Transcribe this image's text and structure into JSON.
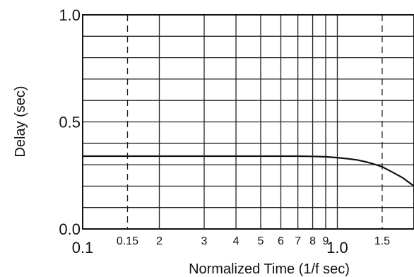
{
  "chart_data": {
    "type": "line",
    "title": "",
    "xlabel": "Normalized Time (1/f sec)",
    "ylabel": "Delay (sec)",
    "x_scale": "log",
    "xlim": [
      0.1,
      2.0
    ],
    "ylim": [
      0.0,
      1.0
    ],
    "grid": true,
    "x_ticks": [
      {
        "value": 0.1,
        "label": "0.1"
      },
      {
        "value": 0.15,
        "label": "0.15"
      },
      {
        "value": 0.2,
        "label": "2"
      },
      {
        "value": 0.3,
        "label": "3"
      },
      {
        "value": 0.4,
        "label": "4"
      },
      {
        "value": 0.5,
        "label": "5"
      },
      {
        "value": 0.6,
        "label": "6"
      },
      {
        "value": 0.7,
        "label": "7"
      },
      {
        "value": 0.8,
        "label": "8"
      },
      {
        "value": 0.9,
        "label": "9"
      },
      {
        "value": 1.0,
        "label": "1.0"
      },
      {
        "value": 1.5,
        "label": "1.5"
      }
    ],
    "dashed_x": [
      0.15,
      1.5
    ],
    "y_ticks": [
      {
        "value": 0.0,
        "label": "0.0"
      },
      {
        "value": 0.5,
        "label": "0.5"
      },
      {
        "value": 1.0,
        "label": "1.0"
      }
    ],
    "y_grid": [
      0.1,
      0.2,
      0.3,
      0.4,
      0.5,
      0.6,
      0.7,
      0.8,
      0.9
    ],
    "series": [
      {
        "x": [
          0.1,
          0.15,
          0.2,
          0.3,
          0.5,
          0.7,
          0.8,
          0.9,
          1.0,
          1.1,
          1.2,
          1.3,
          1.4,
          1.5,
          1.6,
          1.8,
          2.0
        ],
        "y": [
          0.34,
          0.34,
          0.34,
          0.34,
          0.34,
          0.34,
          0.339,
          0.337,
          0.333,
          0.328,
          0.322,
          0.313,
          0.302,
          0.29,
          0.273,
          0.24,
          0.2
        ]
      }
    ]
  }
}
